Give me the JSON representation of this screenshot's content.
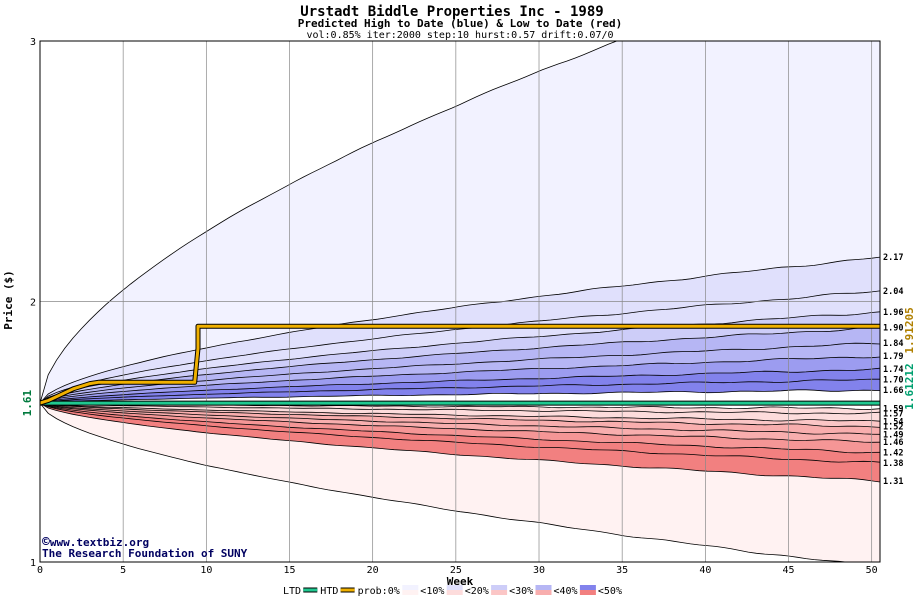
{
  "chart_data": {
    "type": "area",
    "title": "Urstadt Biddle Properties Inc - 1989",
    "subtitle": "Predicted High to Date (blue) &  Low to Date (red)",
    "params": "vol:0.85% iter:2000 step:10 hurst:0.57 drift:0.07/0",
    "xlabel": "Week",
    "ylabel": "Price ($)",
    "xlim": [
      0,
      50.5
    ],
    "ylim": [
      1,
      3
    ],
    "x_ticks": [
      0,
      5,
      10,
      15,
      20,
      25,
      30,
      35,
      40,
      45,
      50
    ],
    "y_ticks": [
      1,
      2,
      3
    ],
    "grid": true,
    "start_price": 1.61,
    "start_label": "1.61",
    "htd_value": 1.91205,
    "htd_label": "1.91205",
    "ltd_value": 1.61212,
    "ltd_label": "1.61212",
    "htd_color": "#f0b000",
    "ltd_color": "#20c890",
    "high_end_values": [
      2.17,
      2.04,
      1.96,
      1.9,
      1.84,
      1.79,
      1.74,
      1.7,
      1.66
    ],
    "low_end_values": [
      1.59,
      1.57,
      1.54,
      1.52,
      1.49,
      1.46,
      1.42,
      1.38,
      1.31
    ],
    "high_end_labels": [
      "2.17",
      "2.04",
      "1.96",
      "1.90",
      "1.84",
      "1.79",
      "1.74",
      "1.70",
      "1.66"
    ],
    "low_end_labels": [
      "1.59",
      "1.57",
      "1.54",
      "1.52",
      "1.49",
      "1.46",
      "1.42",
      "1.38",
      "1.31"
    ],
    "high_outer_end": 3.35,
    "low_outer_end": 0.98,
    "htd_path": [
      [
        0,
        1.61
      ],
      [
        0.5,
        1.62
      ],
      [
        1,
        1.635
      ],
      [
        1.5,
        1.65
      ],
      [
        2,
        1.665
      ],
      [
        2.5,
        1.675
      ],
      [
        3,
        1.685
      ],
      [
        3.5,
        1.69
      ],
      [
        5,
        1.69
      ],
      [
        9.3,
        1.69
      ],
      [
        9.5,
        1.82
      ],
      [
        9.5,
        1.905
      ],
      [
        50.5,
        1.905
      ]
    ],
    "ltd_path": [
      [
        0,
        1.61
      ],
      [
        50.5,
        1.61
      ]
    ],
    "legend": {
      "ltd": "LTD",
      "htd": "HTD",
      "prob": "prob:0%",
      "p10": "<10%",
      "p20": "<20%",
      "p30": "<30%",
      "p40": "<40%",
      "p50": "<50%"
    },
    "band_colors_high": [
      "#f2f2ff",
      "#e0e0fc",
      "#cdcdf8",
      "#b6b6f4",
      "#9c9cf0",
      "#8282ec"
    ],
    "band_colors_low": [
      "#fff2f2",
      "#fddcdc",
      "#fbc6c6",
      "#f8aeae",
      "#f59696",
      "#f28080"
    ],
    "credit_1": "www.textbiz.org",
    "credit_2": "The Research Foundation of SUNY",
    "copyright_symbol": "©"
  }
}
